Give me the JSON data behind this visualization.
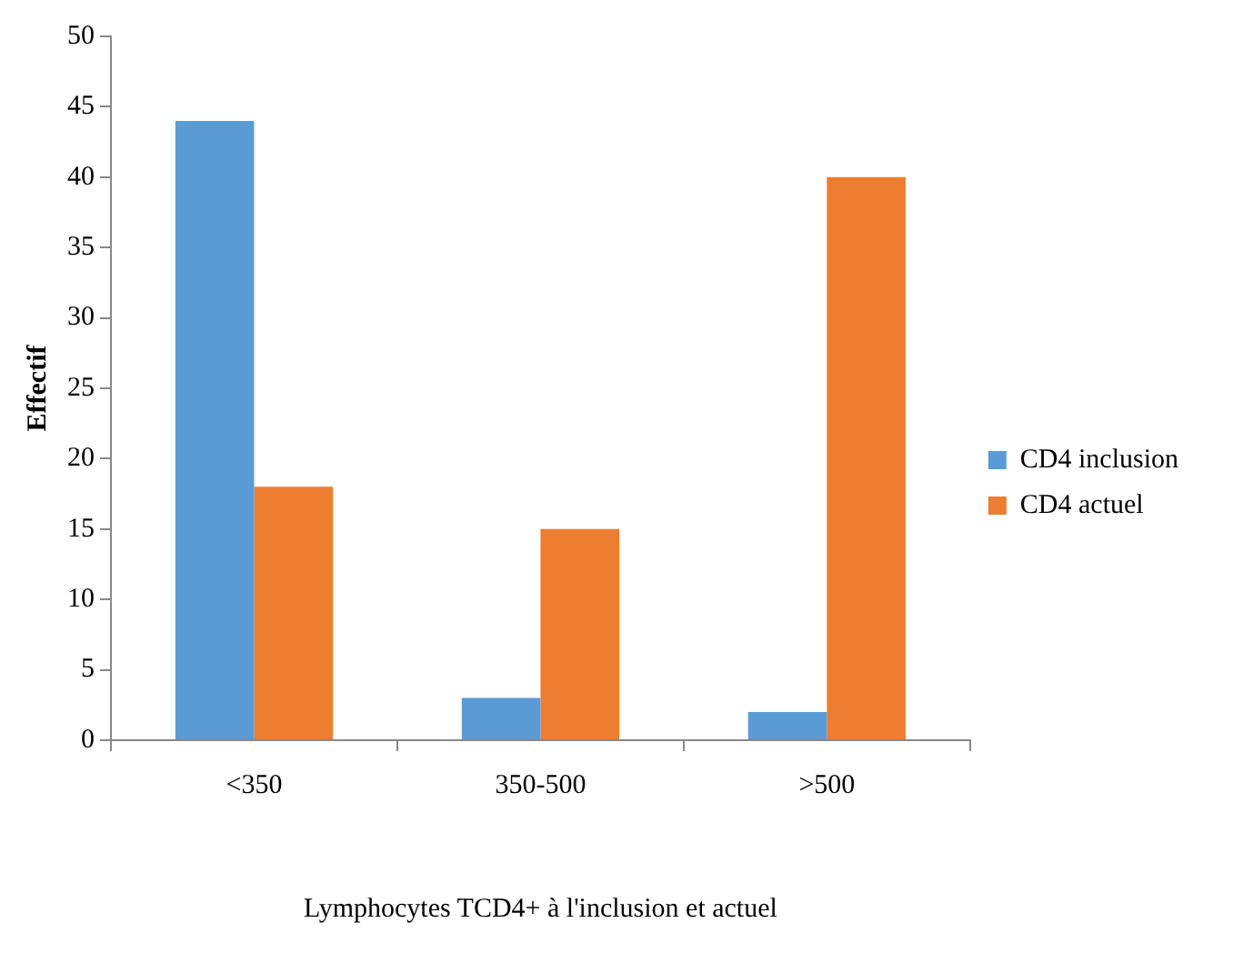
{
  "chart_data": {
    "type": "bar",
    "xlabel": "Lymphocytes TCD4+ à l'inclusion et actuel",
    "ylabel": "Effectif",
    "categories": [
      "<350",
      "350-500",
      ">500"
    ],
    "series": [
      {
        "name": "CD4 inclusion",
        "color": "#5b9bd5",
        "values": [
          44,
          3,
          2
        ]
      },
      {
        "name": "CD4 actuel",
        "color": "#ed7d31",
        "values": [
          18,
          15,
          40
        ]
      }
    ],
    "ylim": [
      0,
      50
    ],
    "yticks": [
      0,
      5,
      10,
      15,
      20,
      25,
      30,
      35,
      40,
      45,
      50
    ],
    "grid": false,
    "legend": "right"
  }
}
